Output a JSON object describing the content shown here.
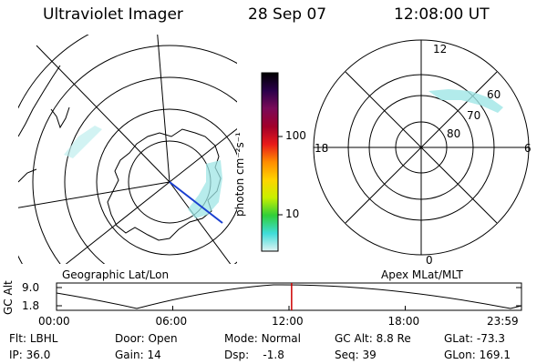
{
  "header": {
    "title": "Ultraviolet Imager",
    "date": "28 Sep 07",
    "time": "12:08:00 UT"
  },
  "colors": {
    "colorbar_stops": [
      "#e0f3f3",
      "#3fdcd8",
      "#2fcf3a",
      "#c8f000",
      "#ffd400",
      "#ff8c00",
      "#e81a1a",
      "#a0002a",
      "#7a0a58",
      "#2a004a",
      "#000000"
    ],
    "aurora": "#9fe6e6",
    "track": "#1a3fd0",
    "time_marker": "#cc0000"
  },
  "colorbar": {
    "unit_label": "photon cm⁻²s⁻¹",
    "tick_labels": [
      "100",
      "10"
    ]
  },
  "geo_map": {
    "label": "Geographic Lat/Lon"
  },
  "mlt_dial": {
    "label": "Apex MLat/MLT",
    "hour_labels": {
      "top": "12",
      "left": "18",
      "right": "6",
      "bottom": "0"
    },
    "lat_labels": [
      "60",
      "70",
      "80"
    ]
  },
  "alt_plot": {
    "axis_label": "GC Alt",
    "y_ticks": [
      "9.0",
      "1.8"
    ],
    "time_ticks": [
      "00:00",
      "06:00",
      "12:00",
      "18:00",
      "23:59"
    ],
    "current_time_fraction": 0.5056
  },
  "info": {
    "row1": [
      {
        "label": "Flt:",
        "value": "LBHL"
      },
      {
        "label": "Door:",
        "value": "Open"
      },
      {
        "label": "Mode:",
        "value": "Normal"
      },
      {
        "label": "GC Alt:",
        "value": "8.8 Re"
      },
      {
        "label": "GLat:",
        "value": "-73.3"
      }
    ],
    "row2": [
      {
        "label": "IP:",
        "value": "36.0"
      },
      {
        "label": "Gain:",
        "value": "14"
      },
      {
        "label": "Dsp:",
        "value": "   -1.8"
      },
      {
        "label": "Seq:",
        "value": "39"
      },
      {
        "label": "GLon:",
        "value": "169.1"
      }
    ]
  }
}
